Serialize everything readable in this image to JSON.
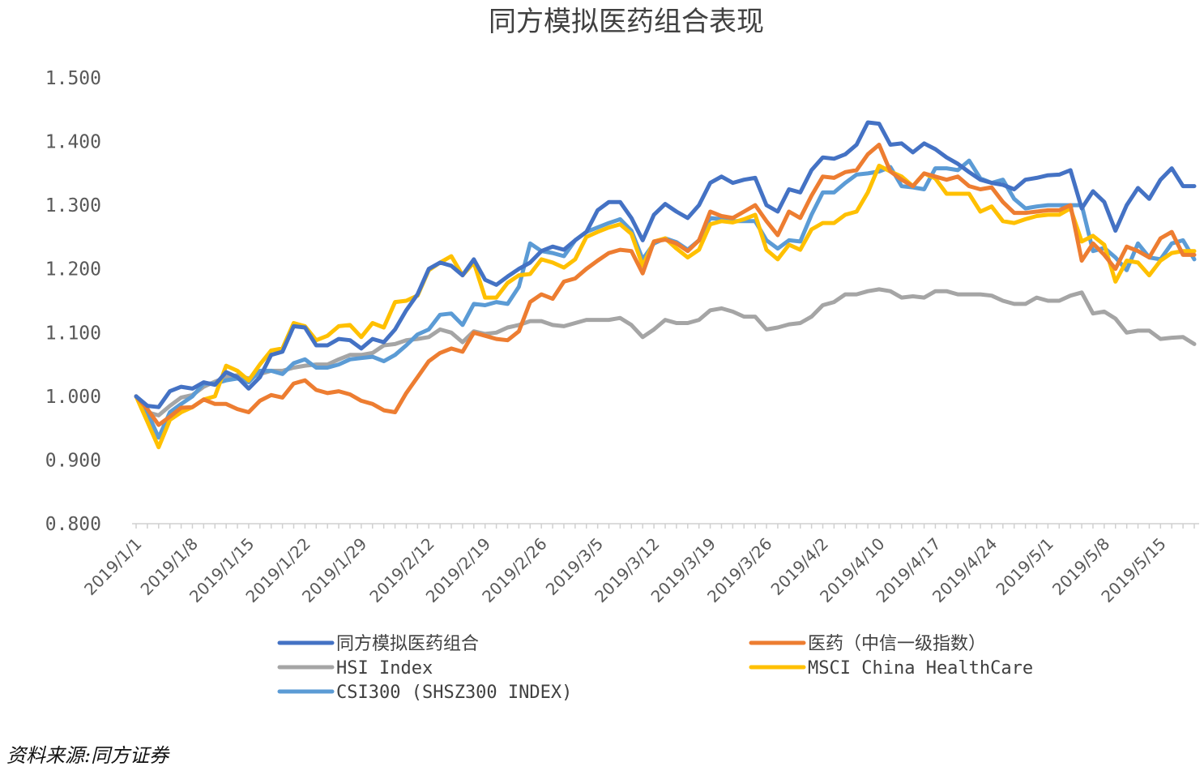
{
  "chart_data": {
    "type": "line",
    "title": "同方模拟医药组合表现",
    "source": "资料来源:同方证券",
    "ylim": [
      0.8,
      1.5
    ],
    "yticks": [
      "0.800",
      "0.900",
      "1.000",
      "1.100",
      "1.200",
      "1.300",
      "1.400",
      "1.500"
    ],
    "grid": false,
    "legend_position": "bottom",
    "x": [
      "2019/1/1",
      "2019/1/2",
      "2019/1/3",
      "2019/1/4",
      "2019/1/7",
      "2019/1/8",
      "2019/1/9",
      "2019/1/10",
      "2019/1/11",
      "2019/1/14",
      "2019/1/15",
      "2019/1/16",
      "2019/1/17",
      "2019/1/18",
      "2019/1/21",
      "2019/1/22",
      "2019/1/23",
      "2019/1/24",
      "2019/1/25",
      "2019/1/28",
      "2019/1/29",
      "2019/1/30",
      "2019/1/31",
      "2019/2/1",
      "2019/2/4",
      "2019/2/11",
      "2019/2/12",
      "2019/2/13",
      "2019/2/14",
      "2019/2/15",
      "2019/2/18",
      "2019/2/19",
      "2019/2/20",
      "2019/2/21",
      "2019/2/22",
      "2019/2/25",
      "2019/2/26",
      "2019/2/27",
      "2019/2/28",
      "2019/3/1",
      "2019/3/4",
      "2019/3/5",
      "2019/3/6",
      "2019/3/7",
      "2019/3/8",
      "2019/3/11",
      "2019/3/12",
      "2019/3/13",
      "2019/3/14",
      "2019/3/15",
      "2019/3/18",
      "2019/3/19",
      "2019/3/20",
      "2019/3/21",
      "2019/3/22",
      "2019/3/25",
      "2019/3/26",
      "2019/3/27",
      "2019/3/28",
      "2019/3/29",
      "2019/4/1",
      "2019/4/2",
      "2019/4/3",
      "2019/4/4",
      "2019/4/8",
      "2019/4/9",
      "2019/4/10",
      "2019/4/11",
      "2019/4/12",
      "2019/4/15",
      "2019/4/16",
      "2019/4/17",
      "2019/4/18",
      "2019/4/19",
      "2019/4/22",
      "2019/4/23",
      "2019/4/24",
      "2019/4/25",
      "2019/4/26",
      "2019/4/29",
      "2019/4/30",
      "2019/5/1",
      "2019/5/2",
      "2019/5/3",
      "2019/5/6",
      "2019/5/7",
      "2019/5/8",
      "2019/5/9",
      "2019/5/10",
      "2019/5/13",
      "2019/5/14",
      "2019/5/15",
      "2019/5/16",
      "2019/5/17",
      "2019/5/20"
    ],
    "xticks": [
      "2019/1/1",
      "2019/1/8",
      "2019/1/15",
      "2019/1/22",
      "2019/1/29",
      "2019/2/12",
      "2019/2/19",
      "2019/2/26",
      "2019/3/5",
      "2019/3/12",
      "2019/3/19",
      "2019/3/26",
      "2019/4/2",
      "2019/4/10",
      "2019/4/17",
      "2019/4/24",
      "2019/5/1",
      "2019/5/8",
      "2019/5/15"
    ],
    "series": [
      {
        "name": "同方模拟医药组合",
        "color": "#4472C4",
        "values": [
          1.0,
          0.985,
          0.983,
          1.008,
          1.015,
          1.012,
          1.022,
          1.018,
          1.038,
          1.03,
          1.012,
          1.03,
          1.065,
          1.07,
          1.11,
          1.108,
          1.08,
          1.08,
          1.09,
          1.088,
          1.075,
          1.09,
          1.085,
          1.105,
          1.135,
          1.16,
          1.2,
          1.21,
          1.205,
          1.19,
          1.215,
          1.183,
          1.175,
          1.188,
          1.2,
          1.21,
          1.228,
          1.235,
          1.23,
          1.245,
          1.258,
          1.292,
          1.305,
          1.305,
          1.28,
          1.245,
          1.285,
          1.302,
          1.29,
          1.28,
          1.3,
          1.335,
          1.345,
          1.335,
          1.34,
          1.343,
          1.3,
          1.29,
          1.325,
          1.32,
          1.355,
          1.375,
          1.373,
          1.38,
          1.395,
          1.43,
          1.428,
          1.395,
          1.397,
          1.383,
          1.397,
          1.388,
          1.375,
          1.365,
          1.352,
          1.34,
          1.335,
          1.332,
          1.325,
          1.34,
          1.343,
          1.347,
          1.348,
          1.355,
          1.295,
          1.322,
          1.305,
          1.26,
          1.3,
          1.327,
          1.31,
          1.34,
          1.358,
          1.33,
          1.33
        ]
      },
      {
        "name": "医药（中信一级指数）",
        "color": "#ED7D31",
        "values": [
          1.0,
          0.98,
          0.955,
          0.968,
          0.982,
          0.983,
          0.995,
          0.988,
          0.988,
          0.98,
          0.975,
          0.993,
          1.002,
          0.998,
          1.02,
          1.025,
          1.01,
          1.005,
          1.008,
          1.003,
          0.993,
          0.988,
          0.978,
          0.975,
          1.005,
          1.03,
          1.055,
          1.068,
          1.075,
          1.07,
          1.1,
          1.095,
          1.09,
          1.088,
          1.102,
          1.148,
          1.16,
          1.153,
          1.18,
          1.185,
          1.2,
          1.213,
          1.225,
          1.23,
          1.228,
          1.193,
          1.243,
          1.246,
          1.24,
          1.228,
          1.245,
          1.29,
          1.283,
          1.28,
          1.29,
          1.3,
          1.275,
          1.253,
          1.29,
          1.28,
          1.315,
          1.345,
          1.343,
          1.352,
          1.355,
          1.38,
          1.395,
          1.353,
          1.34,
          1.33,
          1.35,
          1.345,
          1.34,
          1.345,
          1.33,
          1.325,
          1.328,
          1.305,
          1.288,
          1.288,
          1.29,
          1.292,
          1.292,
          1.3,
          1.213,
          1.24,
          1.222,
          1.2,
          1.235,
          1.228,
          1.218,
          1.248,
          1.258,
          1.222,
          1.222
        ]
      },
      {
        "name": "HSI Index",
        "color": "#A5A5A5",
        "values": [
          1.0,
          0.975,
          0.97,
          0.985,
          0.998,
          1.002,
          1.015,
          1.023,
          1.03,
          1.033,
          1.028,
          1.035,
          1.04,
          1.04,
          1.045,
          1.048,
          1.05,
          1.05,
          1.058,
          1.065,
          1.065,
          1.068,
          1.08,
          1.082,
          1.088,
          1.09,
          1.093,
          1.105,
          1.1,
          1.085,
          1.102,
          1.098,
          1.1,
          1.108,
          1.112,
          1.118,
          1.118,
          1.112,
          1.11,
          1.115,
          1.12,
          1.12,
          1.12,
          1.123,
          1.112,
          1.093,
          1.105,
          1.12,
          1.115,
          1.115,
          1.12,
          1.135,
          1.138,
          1.133,
          1.125,
          1.125,
          1.105,
          1.108,
          1.113,
          1.115,
          1.125,
          1.143,
          1.148,
          1.16,
          1.16,
          1.165,
          1.168,
          1.165,
          1.155,
          1.157,
          1.155,
          1.165,
          1.165,
          1.16,
          1.16,
          1.16,
          1.158,
          1.15,
          1.145,
          1.145,
          1.155,
          1.15,
          1.15,
          1.158,
          1.163,
          1.13,
          1.133,
          1.122,
          1.1,
          1.103,
          1.103,
          1.09,
          1.092,
          1.093,
          1.082
        ]
      },
      {
        "name": "MSCI China HealthCare",
        "color": "#FFC000",
        "values": [
          1.0,
          0.96,
          0.92,
          0.963,
          0.975,
          0.983,
          0.995,
          1.0,
          1.048,
          1.04,
          1.025,
          1.05,
          1.072,
          1.075,
          1.115,
          1.11,
          1.088,
          1.095,
          1.11,
          1.112,
          1.093,
          1.115,
          1.108,
          1.148,
          1.15,
          1.158,
          1.198,
          1.21,
          1.22,
          1.19,
          1.21,
          1.155,
          1.155,
          1.178,
          1.19,
          1.192,
          1.215,
          1.21,
          1.202,
          1.215,
          1.25,
          1.258,
          1.265,
          1.27,
          1.255,
          1.205,
          1.243,
          1.248,
          1.232,
          1.218,
          1.23,
          1.27,
          1.275,
          1.273,
          1.278,
          1.285,
          1.23,
          1.215,
          1.238,
          1.23,
          1.262,
          1.272,
          1.272,
          1.285,
          1.29,
          1.32,
          1.362,
          1.353,
          1.345,
          1.33,
          1.35,
          1.342,
          1.318,
          1.318,
          1.318,
          1.29,
          1.298,
          1.275,
          1.272,
          1.278,
          1.283,
          1.285,
          1.285,
          1.295,
          1.243,
          1.252,
          1.238,
          1.18,
          1.213,
          1.21,
          1.19,
          1.213,
          1.225,
          1.228,
          1.228
        ]
      },
      {
        "name": "CSI300 (SHSZ300 INDEX)",
        "color": "#5B9BD5",
        "values": [
          1.0,
          0.975,
          0.935,
          0.975,
          0.988,
          1.0,
          1.02,
          1.02,
          1.025,
          1.028,
          1.022,
          1.04,
          1.04,
          1.035,
          1.052,
          1.058,
          1.045,
          1.045,
          1.05,
          1.058,
          1.06,
          1.062,
          1.055,
          1.065,
          1.08,
          1.097,
          1.105,
          1.128,
          1.13,
          1.112,
          1.145,
          1.143,
          1.148,
          1.145,
          1.172,
          1.24,
          1.228,
          1.225,
          1.22,
          1.245,
          1.258,
          1.265,
          1.272,
          1.278,
          1.26,
          1.215,
          1.24,
          1.248,
          1.242,
          1.23,
          1.245,
          1.28,
          1.278,
          1.275,
          1.275,
          1.275,
          1.245,
          1.232,
          1.245,
          1.243,
          1.285,
          1.32,
          1.32,
          1.335,
          1.348,
          1.35,
          1.353,
          1.36,
          1.33,
          1.328,
          1.325,
          1.358,
          1.358,
          1.355,
          1.37,
          1.342,
          1.335,
          1.34,
          1.31,
          1.295,
          1.298,
          1.3,
          1.3,
          1.3,
          1.3,
          1.228,
          1.233,
          1.218,
          1.198,
          1.24,
          1.218,
          1.215,
          1.24,
          1.245,
          1.215
        ]
      }
    ]
  }
}
